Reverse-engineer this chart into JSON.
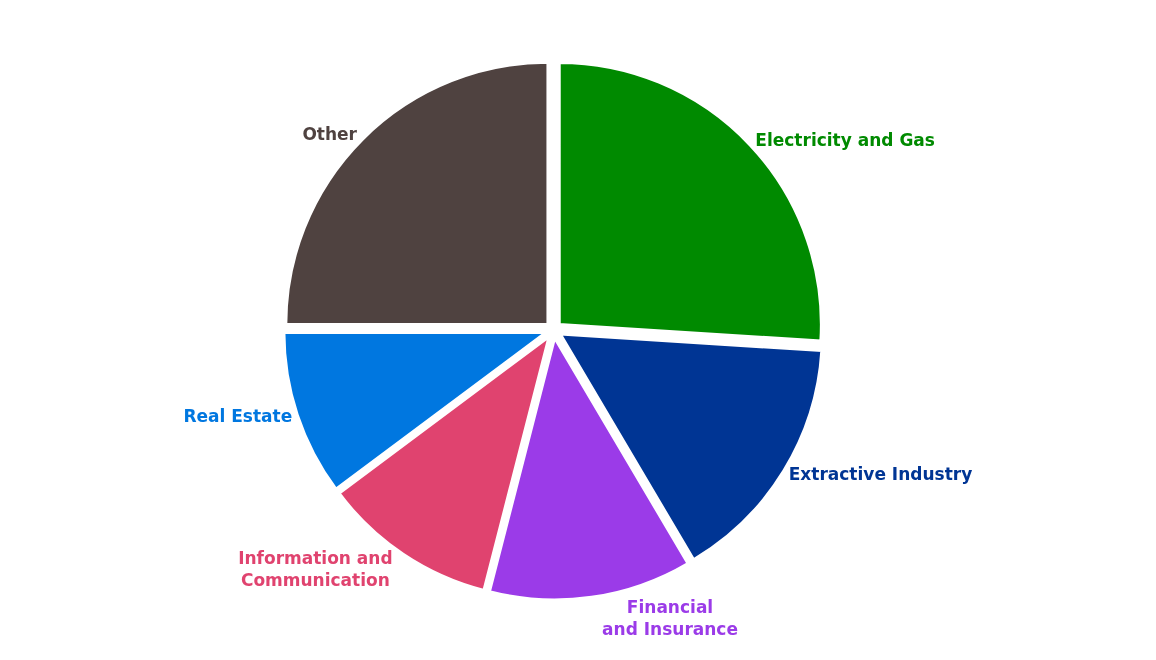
{
  "chart_data": {
    "type": "pie",
    "categories": [
      "Electricity and Gas",
      "Extractive Industry",
      "Financial and Insurance",
      "Information and Communication",
      "Real Estate",
      "Other"
    ],
    "values": [
      26,
      15.5,
      12.5,
      10.8,
      10.2,
      25
    ],
    "colors": [
      "#008a00",
      "#003594",
      "#9b3be8",
      "#e0436f",
      "#0077e0",
      "#4f4240"
    ],
    "legend": false
  }
}
